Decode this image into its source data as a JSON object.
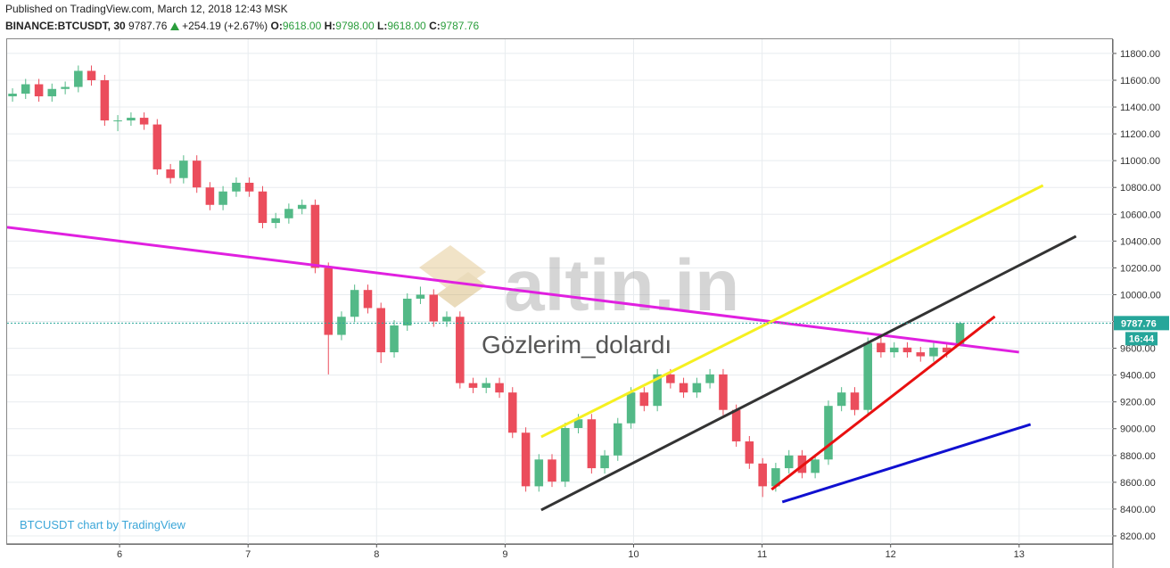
{
  "chart_data": {
    "type": "candlestick",
    "published": "Published on TradingView.com, March 12, 2018 12:43 MSK",
    "symbol": "BINANCE:BTCUSDT, 30",
    "change": "+254.19 (+2.67%)",
    "ohlc_legend": [
      {
        "key": "O:",
        "value": 9618,
        "label": "9618.00"
      },
      {
        "key": "H:",
        "value": 9798,
        "label": "9798.00"
      },
      {
        "key": "L:",
        "value": 9618,
        "label": "9618.00"
      },
      {
        "key": "C:",
        "value": 9787.76,
        "label": "9787.76"
      }
    ],
    "last_price": {
      "value": 9787.76,
      "label": "9787.76"
    },
    "countdown": "16:44",
    "watermark": "altin.in",
    "annotation": "Gözlerim_dolardı",
    "credit": "BTCUSDT chart by TradingView",
    "up_color": "#53b987",
    "down_color": "#eb4d5c",
    "last_color": "#26a69a",
    "grid": true,
    "xlim": [
      5.125,
      13.73
    ],
    "xticks": [
      6,
      7,
      8,
      9,
      10,
      11,
      12,
      13
    ],
    "ylim": [
      8140,
      11906
    ],
    "yticks": [
      {
        "value": 8200,
        "label": "8200.00"
      },
      {
        "value": 8400,
        "label": "8400.00"
      },
      {
        "value": 8600,
        "label": "8600.00"
      },
      {
        "value": 8800,
        "label": "8800.00"
      },
      {
        "value": 9000,
        "label": "9000.00"
      },
      {
        "value": 9200,
        "label": "9200.00"
      },
      {
        "value": 9400,
        "label": "9400.00"
      },
      {
        "value": 9600,
        "label": "9600.00"
      },
      {
        "value": 9800,
        "label": "9800.00"
      },
      {
        "value": 10000,
        "label": "10000.00"
      },
      {
        "value": 10200,
        "label": "10200.00"
      },
      {
        "value": 10400,
        "label": "10400.00"
      },
      {
        "value": 10600,
        "label": "10600.00"
      },
      {
        "value": 10800,
        "label": "10800.00"
      },
      {
        "value": 11000,
        "label": "11000.00"
      },
      {
        "value": 11200,
        "label": "11200.00"
      },
      {
        "value": 11400,
        "label": "11400.00"
      },
      {
        "value": 11600,
        "label": "11600.00"
      },
      {
        "value": 11800,
        "label": "11800.00"
      }
    ],
    "x": [
      5.167,
      5.269,
      5.372,
      5.474,
      5.577,
      5.679,
      5.781,
      5.884,
      5.986,
      6.089,
      6.191,
      6.293,
      6.396,
      6.498,
      6.601,
      6.703,
      6.805,
      6.908,
      7.01,
      7.113,
      7.215,
      7.317,
      7.42,
      7.522,
      7.625,
      7.727,
      7.829,
      7.932,
      8.034,
      8.137,
      8.239,
      8.341,
      8.444,
      8.546,
      8.649,
      8.751,
      8.853,
      8.956,
      9.058,
      9.161,
      9.263,
      9.365,
      9.468,
      9.57,
      9.673,
      9.775,
      9.877,
      9.98,
      10.082,
      10.185,
      10.287,
      10.389,
      10.492,
      10.594,
      10.697,
      10.799,
      10.901,
      11.004,
      11.106,
      11.209,
      11.311,
      11.413,
      11.516,
      11.618,
      11.721,
      11.823,
      11.925,
      12.028,
      12.13,
      12.233,
      12.335,
      12.437,
      12.54
    ],
    "candles": [
      [
        11480,
        11540,
        11440,
        11500
      ],
      [
        11500,
        11610,
        11460,
        11570
      ],
      [
        11570,
        11610,
        11440,
        11480
      ],
      [
        11480,
        11575,
        11440,
        11535
      ],
      [
        11535,
        11590,
        11495,
        11550
      ],
      [
        11550,
        11710,
        11510,
        11670
      ],
      [
        11670,
        11710,
        11560,
        11600
      ],
      [
        11600,
        11640,
        11260,
        11300
      ],
      [
        11300,
        11340,
        11220,
        11300
      ],
      [
        11300,
        11360,
        11260,
        11320
      ],
      [
        11320,
        11360,
        11230,
        11270
      ],
      [
        11270,
        11310,
        10895,
        10935
      ],
      [
        10935,
        10975,
        10830,
        10870
      ],
      [
        10870,
        11040,
        10830,
        11000
      ],
      [
        11000,
        11040,
        10760,
        10800
      ],
      [
        10800,
        10840,
        10630,
        10670
      ],
      [
        10670,
        10810,
        10630,
        10770
      ],
      [
        10770,
        10875,
        10730,
        10835
      ],
      [
        10835,
        10875,
        10730,
        10770
      ],
      [
        10770,
        10810,
        10495,
        10535
      ],
      [
        10535,
        10610,
        10495,
        10570
      ],
      [
        10570,
        10680,
        10530,
        10640
      ],
      [
        10640,
        10710,
        10600,
        10670
      ],
      [
        10670,
        10710,
        10160,
        10200
      ],
      [
        10200,
        10240,
        9405,
        9700
      ],
      [
        9700,
        9875,
        9660,
        9835
      ],
      [
        9835,
        10075,
        9795,
        10035
      ],
      [
        10035,
        10075,
        9860,
        9900
      ],
      [
        9900,
        9940,
        9490,
        9570
      ],
      [
        9570,
        9810,
        9530,
        9770
      ],
      [
        9770,
        10010,
        9730,
        9970
      ],
      [
        9970,
        10060,
        9930,
        10000
      ],
      [
        10000,
        10040,
        9760,
        9800
      ],
      [
        9800,
        9875,
        9760,
        9835
      ],
      [
        9835,
        9875,
        9300,
        9340
      ],
      [
        9340,
        9380,
        9265,
        9305
      ],
      [
        9305,
        9380,
        9265,
        9340
      ],
      [
        9340,
        9380,
        9230,
        9270
      ],
      [
        9270,
        9310,
        8930,
        8970
      ],
      [
        8970,
        9010,
        8530,
        8570
      ],
      [
        8570,
        8810,
        8530,
        8770
      ],
      [
        8770,
        8810,
        8565,
        8605
      ],
      [
        8605,
        9045,
        8565,
        9005
      ],
      [
        9005,
        9110,
        8965,
        9070
      ],
      [
        9070,
        9110,
        8665,
        8705
      ],
      [
        8705,
        8840,
        8665,
        8800
      ],
      [
        8800,
        9080,
        8760,
        9040
      ],
      [
        9040,
        9310,
        9000,
        9270
      ],
      [
        9270,
        9310,
        9130,
        9170
      ],
      [
        9170,
        9445,
        9130,
        9405
      ],
      [
        9405,
        9445,
        9300,
        9340
      ],
      [
        9340,
        9380,
        9230,
        9270
      ],
      [
        9270,
        9380,
        9230,
        9340
      ],
      [
        9340,
        9445,
        9300,
        9405
      ],
      [
        9405,
        9445,
        9100,
        9140
      ],
      [
        9140,
        9180,
        8865,
        8905
      ],
      [
        8905,
        8945,
        8700,
        8740
      ],
      [
        8740,
        8780,
        8490,
        8570
      ],
      [
        8570,
        8745,
        8530,
        8705
      ],
      [
        8705,
        8840,
        8665,
        8800
      ],
      [
        8800,
        8840,
        8630,
        8670
      ],
      [
        8670,
        8810,
        8630,
        8770
      ],
      [
        8770,
        9210,
        8730,
        9170
      ],
      [
        9170,
        9310,
        9130,
        9270
      ],
      [
        9270,
        9310,
        9100,
        9140
      ],
      [
        9140,
        9680,
        9100,
        9640
      ],
      [
        9640,
        9680,
        9530,
        9570
      ],
      [
        9570,
        9645,
        9530,
        9605
      ],
      [
        9605,
        9645,
        9530,
        9570
      ],
      [
        9570,
        9610,
        9500,
        9540
      ],
      [
        9540,
        9645,
        9500,
        9605
      ],
      [
        9605,
        9645,
        9530,
        9570
      ],
      [
        9618,
        9798,
        9618,
        9787.76
      ]
    ],
    "trendlines": [
      {
        "color": "#e020e0",
        "x": [
          5.125,
          12.999
        ],
        "y": [
          10503,
          9571
        ]
      },
      {
        "color": "#f5f020",
        "x": [
          9.281,
          13.186
        ],
        "y": [
          8939,
          10815
        ]
      },
      {
        "color": "#333333",
        "x": [
          9.281,
          13.443
        ],
        "y": [
          8393,
          10436
        ]
      },
      {
        "color": "#e81010",
        "x": [
          11.074,
          12.811
        ],
        "y": [
          8546,
          9837
        ]
      },
      {
        "color": "#1010d0",
        "x": [
          11.157,
          13.089
        ],
        "y": [
          8453,
          9032
        ]
      }
    ]
  }
}
